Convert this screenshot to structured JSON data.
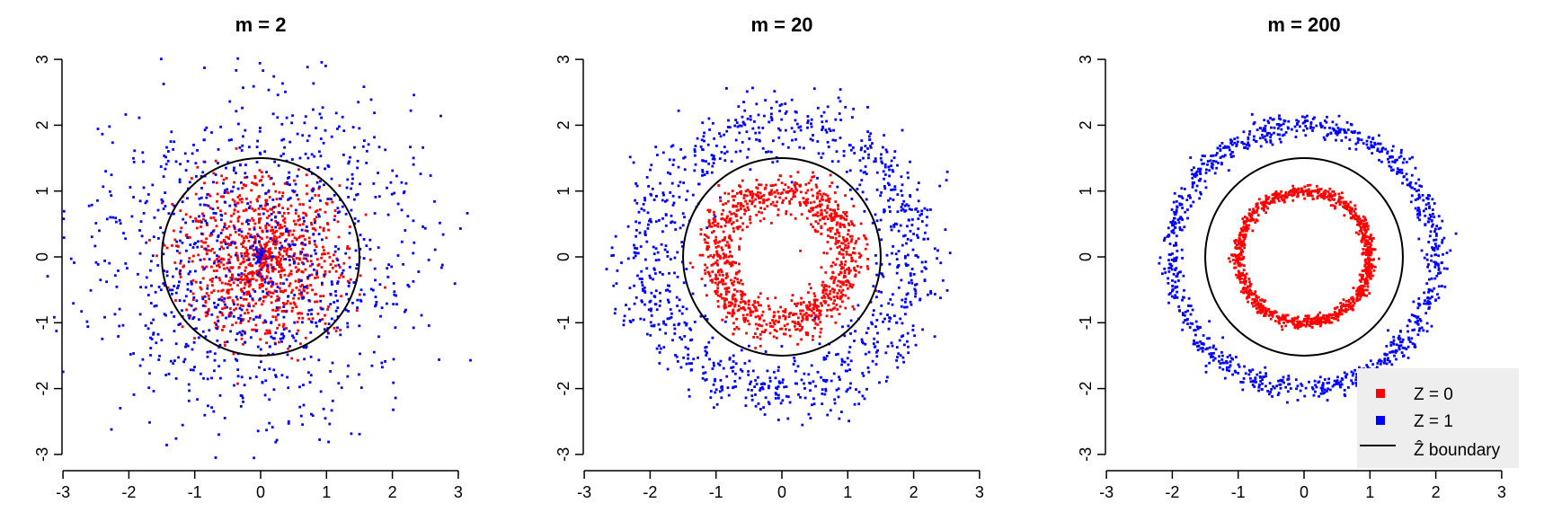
{
  "chart_data": [
    {
      "type": "scatter",
      "title": "m = 2",
      "xlim": [
        -3,
        3
      ],
      "ylim": [
        -3,
        3
      ],
      "xticks": [
        -3,
        -2,
        -1,
        0,
        1,
        2,
        3
      ],
      "yticks": [
        -3,
        -2,
        -1,
        0,
        1,
        2,
        3
      ],
      "xlabel": "",
      "ylabel": "",
      "grid": false,
      "boundary_radius": 1.5,
      "series": [
        {
          "label": "Z = 0",
          "color": "#ff0000",
          "radius_mean": 0.7,
          "radius_sd": 0.45,
          "count": 1000
        },
        {
          "label": "Z = 1",
          "color": "#0000ff",
          "radius_mean": 1.6,
          "radius_sd": 0.75,
          "count": 1000
        }
      ]
    },
    {
      "type": "scatter",
      "title": "m = 20",
      "xlim": [
        -3,
        3
      ],
      "ylim": [
        -3,
        3
      ],
      "xticks": [
        -3,
        -2,
        -1,
        0,
        1,
        2,
        3
      ],
      "yticks": [
        -3,
        -2,
        -1,
        0,
        1,
        2,
        3
      ],
      "xlabel": "",
      "ylabel": "",
      "grid": false,
      "boundary_radius": 1.5,
      "series": [
        {
          "label": "Z = 0",
          "color": "#ff0000",
          "radius_mean": 1.0,
          "radius_sd": 0.16,
          "count": 1000
        },
        {
          "label": "Z = 1",
          "color": "#0000ff",
          "radius_mean": 2.0,
          "radius_sd": 0.28,
          "count": 1000
        }
      ]
    },
    {
      "type": "scatter",
      "title": "m = 200",
      "xlim": [
        -3,
        3
      ],
      "ylim": [
        -3,
        3
      ],
      "xticks": [
        -3,
        -2,
        -1,
        0,
        1,
        2,
        3
      ],
      "yticks": [
        -3,
        -2,
        -1,
        0,
        1,
        2,
        3
      ],
      "xlabel": "",
      "ylabel": "",
      "grid": false,
      "boundary_radius": 1.5,
      "series": [
        {
          "label": "Z = 0",
          "color": "#ff0000",
          "radius_mean": 1.0,
          "radius_sd": 0.05,
          "count": 1000
        },
        {
          "label": "Z = 1",
          "color": "#0000ff",
          "radius_mean": 2.0,
          "radius_sd": 0.09,
          "count": 1000
        }
      ]
    }
  ],
  "legend": {
    "placement": "bottom-right",
    "background": "#eeeeee",
    "entries": [
      {
        "label": "Z = 0",
        "color": "#ff0000",
        "marker": "square"
      },
      {
        "label": "Z = 1",
        "color": "#0000ff",
        "marker": "square"
      },
      {
        "label": "Ẑ boundary",
        "color": "#000000",
        "marker": "line"
      }
    ]
  }
}
